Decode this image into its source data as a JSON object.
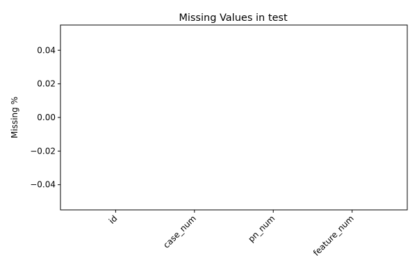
{
  "chart_data": {
    "type": "bar",
    "title": "Missing Values in test",
    "xlabel": "",
    "ylabel": "Missing %",
    "categories": [
      "id",
      "case_num",
      "pn_num",
      "feature_num"
    ],
    "values": [
      0,
      0,
      0,
      0
    ],
    "ylim": [
      -0.055,
      0.055
    ],
    "yticks": [
      -0.04,
      -0.02,
      0.0,
      0.02,
      0.04
    ],
    "ytick_labels": [
      "−0.04",
      "−0.02",
      "0.00",
      "0.02",
      "0.04"
    ],
    "grid": false,
    "legend": "none",
    "colors": {
      "bar": "#1f77b4",
      "axis": "#000000",
      "background": "#ffffff"
    }
  }
}
